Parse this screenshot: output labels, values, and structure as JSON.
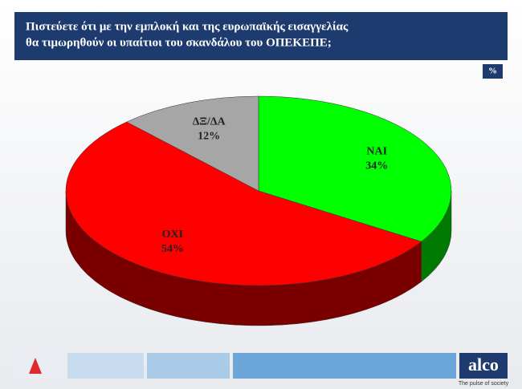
{
  "chart_data": {
    "type": "pie",
    "title": [
      "Πιστεύετε ότι με την εμπλοκή και της ευρωπαϊκής εισαγγελίας",
      "θα τιμωρηθούν οι υπαίτιοι του σκανδάλου του ΟΠΕΚΕΠΕ;"
    ],
    "unit": "%",
    "categories": [
      "ΝΑΙ",
      "ΟΧΙ",
      "ΔΞ/ΔΑ"
    ],
    "values": [
      34,
      54,
      12
    ],
    "value_labels": [
      "34%",
      "54%",
      "12%"
    ],
    "colors": [
      "#00ff00",
      "#ff0000",
      "#a6a6a6"
    ],
    "side_colors": [
      "#007a00",
      "#7a0000",
      "#6e6e6e"
    ]
  },
  "footer": {
    "brand": "alco",
    "tagline": "The pulse of society"
  }
}
